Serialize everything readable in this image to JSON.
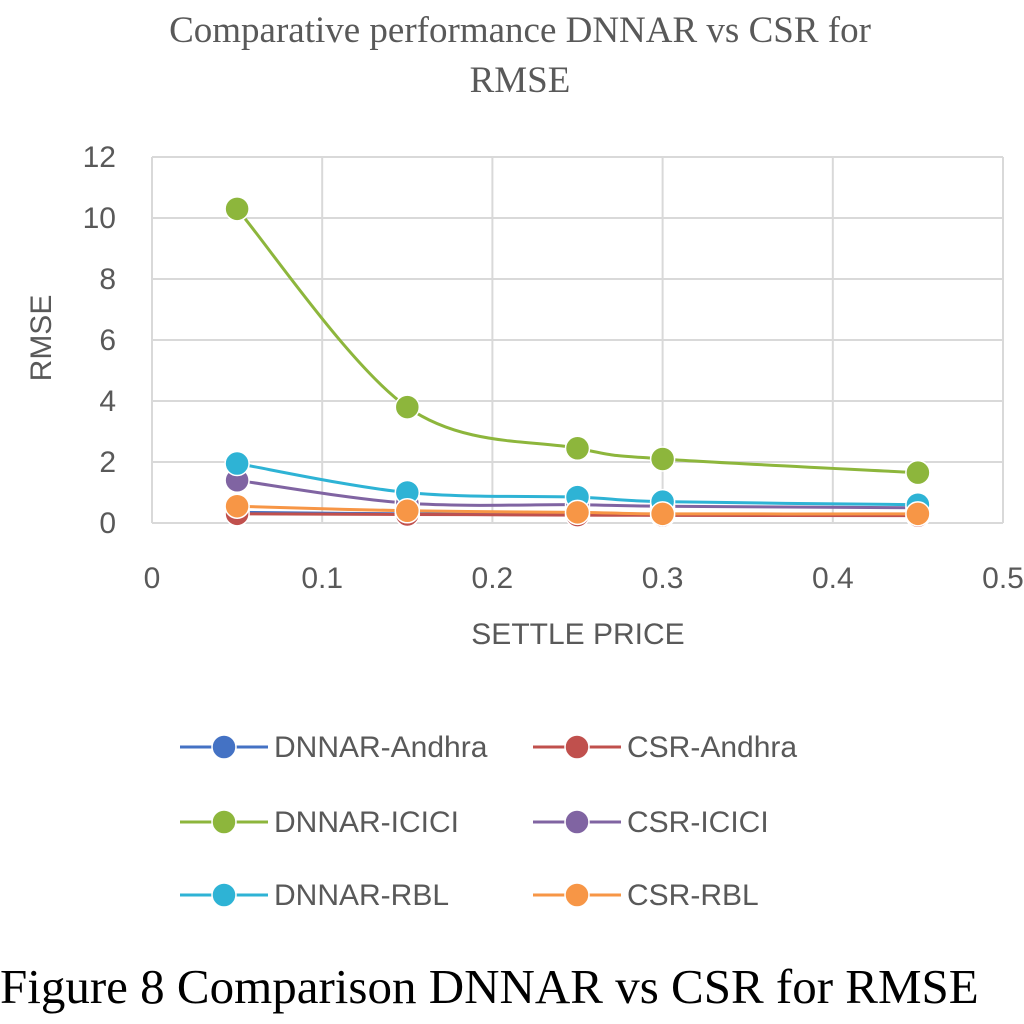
{
  "chart_data": {
    "type": "line",
    "title_lines": [
      "Comparative  performance  DNNAR vs CSR  for",
      "RMSE"
    ],
    "xlabel": "SETTLE PRICE",
    "ylabel": "RMSE",
    "xlim": [
      0,
      0.5
    ],
    "ylim": [
      0,
      12
    ],
    "x_ticks": [
      0,
      0.1,
      0.2,
      0.3,
      0.4,
      0.5
    ],
    "x_tick_labels": [
      "0",
      "0.1",
      "0.2",
      "0.3",
      "0.4",
      "0.5"
    ],
    "y_ticks": [
      0,
      2,
      4,
      6,
      8,
      10,
      12
    ],
    "y_tick_labels": [
      "0",
      "2",
      "4",
      "6",
      "8",
      "10",
      "12"
    ],
    "grid": true,
    "smooth": true,
    "legend_position": "bottom",
    "x": [
      0.05,
      0.15,
      0.25,
      0.3,
      0.45
    ],
    "series": [
      {
        "name": "DNNAR-Andhra",
        "color": "#4472C4",
        "values": [
          0.35,
          0.3,
          0.28,
          0.27,
          0.25
        ]
      },
      {
        "name": "CSR-Andhra",
        "color": "#C0504D",
        "values": [
          0.3,
          0.28,
          0.26,
          0.25,
          0.24
        ]
      },
      {
        "name": "DNNAR-ICICI",
        "color": "#8DB63C",
        "values": [
          10.3,
          3.8,
          2.45,
          2.1,
          1.65
        ]
      },
      {
        "name": "CSR-ICICI",
        "color": "#8064A2",
        "values": [
          1.4,
          0.65,
          0.6,
          0.55,
          0.5
        ]
      },
      {
        "name": "DNNAR-RBL",
        "color": "#2EB3D5",
        "values": [
          1.95,
          1.0,
          0.85,
          0.7,
          0.6
        ]
      },
      {
        "name": "CSR-RBL",
        "color": "#F79646",
        "values": [
          0.55,
          0.4,
          0.35,
          0.3,
          0.3
        ]
      }
    ]
  },
  "caption": "Figure 8 Comparison DNNAR vs CSR for RMSE"
}
